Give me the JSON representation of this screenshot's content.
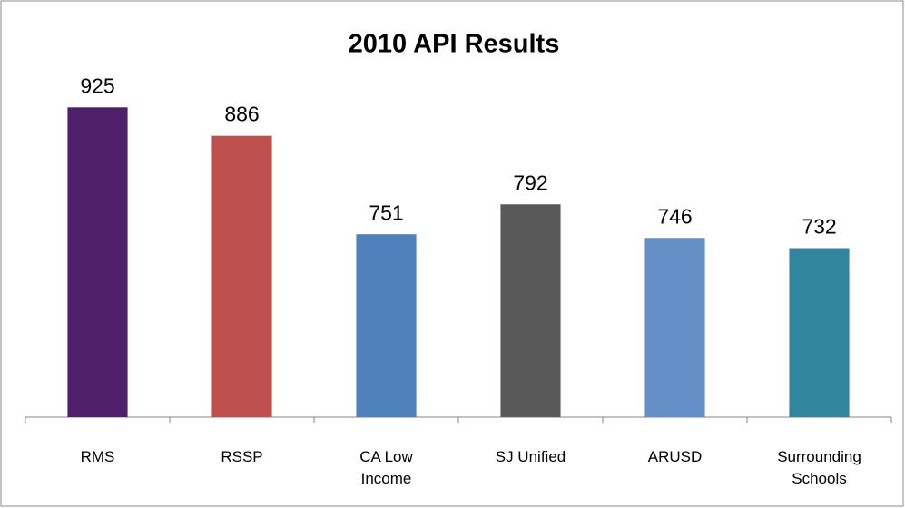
{
  "chart_data": {
    "type": "bar",
    "title": "2010 API Results",
    "categories": [
      "RMS",
      "RSSP",
      "CA Low Income",
      "SJ Unified",
      "ARUSD",
      "Surrounding Schools"
    ],
    "values": [
      925,
      886,
      751,
      792,
      746,
      732
    ],
    "colors": [
      "#4f1f6a",
      "#c0504d",
      "#4f81bd",
      "#595959",
      "#6490c7",
      "#31859c"
    ],
    "ylim": [
      500,
      1000
    ]
  }
}
